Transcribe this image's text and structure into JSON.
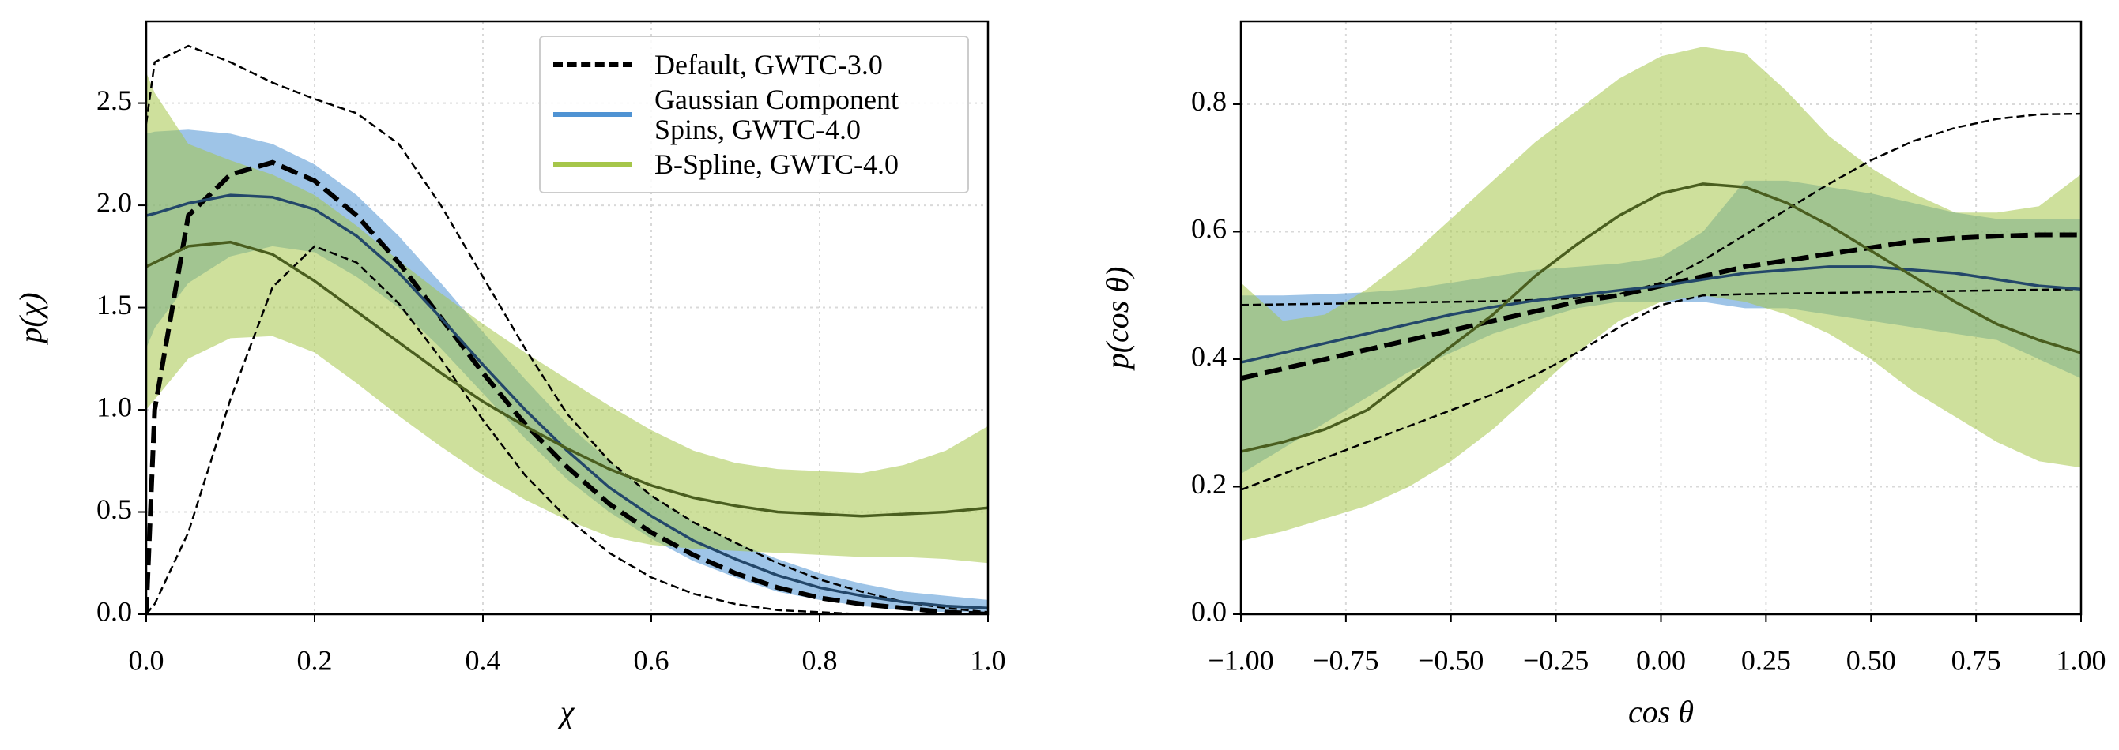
{
  "chart_data": [
    {
      "type": "line",
      "xlabel": "χ",
      "ylabel": "p(χ)",
      "xlim": [
        0,
        1
      ],
      "ylim": [
        0,
        2.9
      ],
      "xticks": [
        {
          "value": 0,
          "label": "0.0"
        },
        0.2,
        0.4,
        0.6,
        0.8,
        {
          "value": 1,
          "label": "1.0"
        }
      ],
      "yticks": [
        {
          "value": 0,
          "label": "0.0"
        },
        0.5,
        {
          "value": 1,
          "label": "1.0"
        },
        1.5,
        {
          "value": 2,
          "label": "2.0"
        },
        2.5
      ],
      "grid": true,
      "legend": "upper right",
      "x": [
        0,
        0.01,
        0.05,
        0.1,
        0.15,
        0.2,
        0.25,
        0.3,
        0.35,
        0.4,
        0.45,
        0.5,
        0.55,
        0.6,
        0.65,
        0.7,
        0.75,
        0.8,
        0.85,
        0.9,
        0.95,
        1.0
      ],
      "series": [
        {
          "name": "Default, GWTC-3.0",
          "color": "#000000",
          "line_color": "#000000",
          "linestyle": "dashed",
          "band_style": "dashed",
          "values": [
            0,
            1.0,
            1.95,
            2.15,
            2.21,
            2.12,
            1.95,
            1.72,
            1.45,
            1.18,
            0.93,
            0.72,
            0.54,
            0.4,
            0.29,
            0.2,
            0.13,
            0.08,
            0.05,
            0.03,
            0.01,
            0.0
          ],
          "upper": [
            2.4,
            2.7,
            2.78,
            2.7,
            2.6,
            2.52,
            2.45,
            2.3,
            2.0,
            1.65,
            1.3,
            0.98,
            0.75,
            0.58,
            0.45,
            0.35,
            0.25,
            0.17,
            0.11,
            0.06,
            0.03,
            0.01
          ],
          "lower": [
            0,
            0.05,
            0.4,
            1.05,
            1.6,
            1.8,
            1.72,
            1.52,
            1.25,
            0.95,
            0.68,
            0.47,
            0.3,
            0.18,
            0.1,
            0.05,
            0.02,
            0.01,
            0,
            0,
            0,
            0
          ]
        },
        {
          "name": "Gaussian Component Spins, GWTC-4.0",
          "color": "#4f93d3",
          "line_color": "#23476a",
          "linestyle": "solid",
          "band_style": "fill",
          "values": [
            1.95,
            1.96,
            2.01,
            2.05,
            2.04,
            1.98,
            1.85,
            1.67,
            1.45,
            1.22,
            1.0,
            0.8,
            0.62,
            0.48,
            0.36,
            0.27,
            0.19,
            0.13,
            0.09,
            0.06,
            0.04,
            0.03
          ],
          "upper": [
            2.35,
            2.36,
            2.37,
            2.35,
            2.3,
            2.2,
            2.05,
            1.85,
            1.62,
            1.38,
            1.15,
            0.93,
            0.75,
            0.58,
            0.45,
            0.35,
            0.27,
            0.2,
            0.15,
            0.11,
            0.09,
            0.07
          ],
          "lower": [
            1.3,
            1.4,
            1.62,
            1.75,
            1.8,
            1.77,
            1.65,
            1.5,
            1.3,
            1.08,
            0.86,
            0.66,
            0.5,
            0.37,
            0.26,
            0.18,
            0.11,
            0.07,
            0.04,
            0.02,
            0.01,
            0.01
          ]
        },
        {
          "name": "B-Spline, GWTC-4.0",
          "color": "#a6c64a",
          "line_color": "#4a5e1f",
          "linestyle": "solid",
          "band_style": "fill",
          "values": [
            1.7,
            1.72,
            1.8,
            1.82,
            1.76,
            1.63,
            1.48,
            1.33,
            1.18,
            1.04,
            0.92,
            0.81,
            0.71,
            0.63,
            0.57,
            0.53,
            0.5,
            0.49,
            0.48,
            0.49,
            0.5,
            0.52
          ],
          "upper": [
            2.65,
            2.55,
            2.3,
            2.22,
            2.15,
            2.05,
            1.9,
            1.73,
            1.57,
            1.42,
            1.28,
            1.15,
            1.02,
            0.9,
            0.8,
            0.74,
            0.71,
            0.7,
            0.69,
            0.73,
            0.8,
            0.92
          ],
          "lower": [
            1.0,
            1.05,
            1.25,
            1.35,
            1.36,
            1.28,
            1.13,
            0.97,
            0.82,
            0.68,
            0.56,
            0.46,
            0.38,
            0.34,
            0.32,
            0.31,
            0.3,
            0.29,
            0.28,
            0.28,
            0.27,
            0.25
          ]
        }
      ]
    },
    {
      "type": "line",
      "xlabel": "cos θ",
      "ylabel": "p(cos θ)",
      "xlim": [
        -1,
        1
      ],
      "ylim": [
        0,
        0.93
      ],
      "xticks": [
        {
          "value": -1,
          "label": "−1.00"
        },
        {
          "value": -0.75,
          "label": "−0.75"
        },
        {
          "value": -0.5,
          "label": "−0.50"
        },
        {
          "value": -0.25,
          "label": "−0.25"
        },
        {
          "value": 0,
          "label": "0.00"
        },
        0.25,
        {
          "value": 0.5,
          "label": "0.50"
        },
        0.75,
        {
          "value": 1,
          "label": "1.00"
        }
      ],
      "yticks": [
        {
          "value": 0,
          "label": "0.0"
        },
        0.2,
        0.4,
        0.6,
        0.8
      ],
      "grid": true,
      "x": [
        -1,
        -0.9,
        -0.8,
        -0.7,
        -0.6,
        -0.5,
        -0.4,
        -0.3,
        -0.2,
        -0.1,
        0,
        0.1,
        0.2,
        0.3,
        0.4,
        0.5,
        0.6,
        0.7,
        0.8,
        0.9,
        1.0
      ],
      "series": [
        {
          "color": "#000000",
          "line_color": "#000000",
          "linestyle": "dashed",
          "band_style": "dashed",
          "values": [
            0.37,
            0.385,
            0.4,
            0.415,
            0.43,
            0.445,
            0.46,
            0.475,
            0.49,
            0.5,
            0.515,
            0.53,
            0.545,
            0.555,
            0.565,
            0.575,
            0.585,
            0.59,
            0.593,
            0.595,
            0.595
          ],
          "upper": [
            0.485,
            0.486,
            0.487,
            0.488,
            0.489,
            0.49,
            0.491,
            0.493,
            0.496,
            0.502,
            0.52,
            0.555,
            0.595,
            0.635,
            0.675,
            0.712,
            0.742,
            0.763,
            0.777,
            0.784,
            0.785
          ],
          "lower": [
            0.195,
            0.22,
            0.245,
            0.27,
            0.295,
            0.32,
            0.345,
            0.375,
            0.41,
            0.45,
            0.485,
            0.5,
            0.502,
            0.503,
            0.504,
            0.505,
            0.506,
            0.507,
            0.508,
            0.509,
            0.51
          ]
        },
        {
          "color": "#4f93d3",
          "line_color": "#23476a",
          "linestyle": "solid",
          "band_style": "fill",
          "values": [
            0.395,
            0.41,
            0.425,
            0.44,
            0.455,
            0.47,
            0.482,
            0.492,
            0.5,
            0.508,
            0.515,
            0.525,
            0.535,
            0.54,
            0.545,
            0.545,
            0.54,
            0.535,
            0.525,
            0.515,
            0.51
          ],
          "upper": [
            0.5,
            0.5,
            0.502,
            0.505,
            0.51,
            0.52,
            0.53,
            0.54,
            0.545,
            0.55,
            0.56,
            0.6,
            0.68,
            0.68,
            0.67,
            0.66,
            0.645,
            0.63,
            0.62,
            0.62,
            0.62
          ],
          "lower": [
            0.22,
            0.26,
            0.3,
            0.34,
            0.38,
            0.41,
            0.44,
            0.46,
            0.48,
            0.49,
            0.49,
            0.49,
            0.48,
            0.48,
            0.47,
            0.46,
            0.45,
            0.44,
            0.43,
            0.4,
            0.37
          ]
        },
        {
          "color": "#a6c64a",
          "line_color": "#4a5e1f",
          "linestyle": "solid",
          "band_style": "fill",
          "values": [
            0.255,
            0.27,
            0.29,
            0.32,
            0.37,
            0.42,
            0.47,
            0.53,
            0.58,
            0.625,
            0.66,
            0.675,
            0.67,
            0.645,
            0.61,
            0.57,
            0.53,
            0.49,
            0.455,
            0.43,
            0.41
          ],
          "upper": [
            0.52,
            0.46,
            0.47,
            0.51,
            0.56,
            0.62,
            0.68,
            0.74,
            0.79,
            0.84,
            0.875,
            0.89,
            0.88,
            0.82,
            0.75,
            0.7,
            0.66,
            0.63,
            0.63,
            0.64,
            0.69
          ],
          "lower": [
            0.115,
            0.13,
            0.15,
            0.17,
            0.2,
            0.24,
            0.29,
            0.35,
            0.41,
            0.46,
            0.49,
            0.5,
            0.49,
            0.47,
            0.44,
            0.4,
            0.35,
            0.31,
            0.27,
            0.24,
            0.23
          ]
        }
      ]
    }
  ]
}
